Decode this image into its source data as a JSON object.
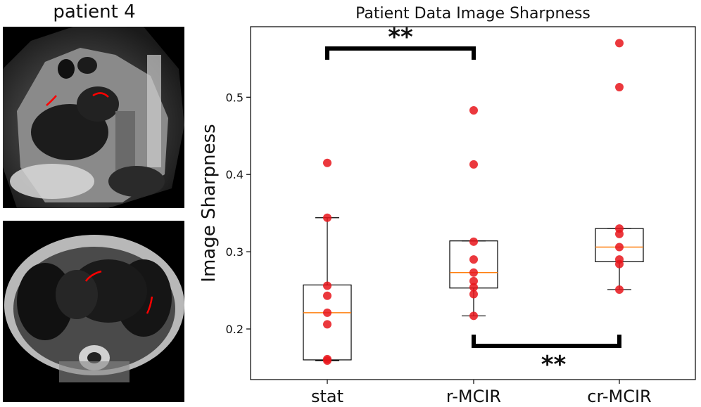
{
  "left_panel": {
    "title": "patient 4",
    "images": [
      {
        "name": "sagittal-mri-slice"
      },
      {
        "name": "axial-mri-slice"
      }
    ]
  },
  "colors": {
    "points": "#e8151b",
    "median": "#ff7f0e",
    "box": "#000000",
    "contour": "#ff0000"
  },
  "chart_data": {
    "type": "box",
    "title": "Patient Data Image Sharpness",
    "xlabel": "",
    "ylabel": "Image Sharpness",
    "ylim": [
      0.15,
      0.59
    ],
    "yticks": [
      0.2,
      0.3,
      0.4,
      0.5
    ],
    "ytick_labels": [
      "0.2",
      "0.3",
      "0.4",
      "0.5"
    ],
    "categories": [
      "stat",
      "r-MCIR",
      "cr-MCIR"
    ],
    "boxes": [
      {
        "category": "stat",
        "whisker_low": 0.159,
        "q1": 0.16,
        "median": 0.221,
        "q3": 0.257,
        "whisker_high": 0.344
      },
      {
        "category": "r-MCIR",
        "whisker_low": 0.217,
        "q1": 0.253,
        "median": 0.273,
        "q3": 0.314,
        "whisker_high": 0.314
      },
      {
        "category": "cr-MCIR",
        "whisker_low": 0.251,
        "q1": 0.287,
        "median": 0.306,
        "q3": 0.33,
        "whisker_high": 0.33
      }
    ],
    "points": [
      {
        "category": "stat",
        "values": [
          0.415,
          0.344,
          0.256,
          0.243,
          0.221,
          0.206,
          0.161,
          0.159
        ]
      },
      {
        "category": "r-MCIR",
        "values": [
          0.483,
          0.413,
          0.313,
          0.29,
          0.273,
          0.262,
          0.254,
          0.245,
          0.217
        ]
      },
      {
        "category": "cr-MCIR",
        "values": [
          0.57,
          0.513,
          0.33,
          0.323,
          0.306,
          0.29,
          0.284,
          0.251
        ]
      }
    ],
    "significance": [
      {
        "from": "stat",
        "to": "r-MCIR",
        "label": "**",
        "position": "top"
      },
      {
        "from": "r-MCIR",
        "to": "cr-MCIR",
        "label": "**",
        "position": "bottom"
      }
    ],
    "grid": false,
    "legend": "none"
  }
}
